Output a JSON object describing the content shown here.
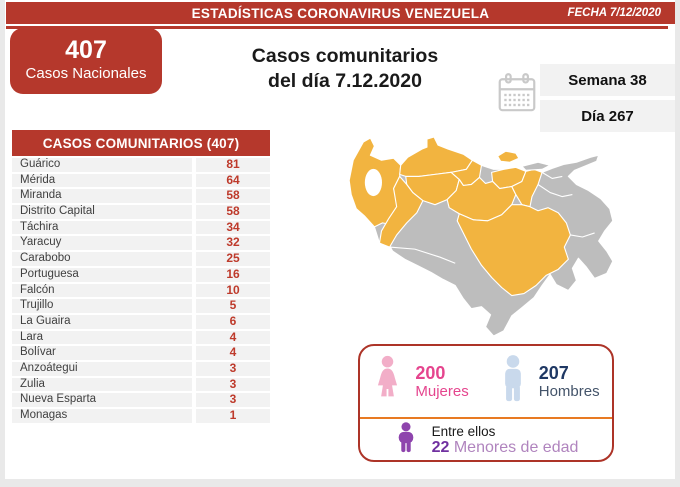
{
  "header": {
    "title": "ESTADÍSTICAS CORONAVIRUS VENEZUELA",
    "date_label": "FECHA 7/12/2020"
  },
  "national": {
    "value": "407",
    "label": "Casos Nacionales"
  },
  "main_title": {
    "line1": "Casos comunitarios",
    "line2": "del día 7.12.2020"
  },
  "period": {
    "week": "Semana 38",
    "day": "Día 267"
  },
  "table": {
    "header": "CASOS COMUNITARIOS (407)",
    "rows": [
      {
        "state": "Guárico",
        "value": "81"
      },
      {
        "state": "Mérida",
        "value": "64"
      },
      {
        "state": "Miranda",
        "value": "58"
      },
      {
        "state": "Distrito Capital",
        "value": "58"
      },
      {
        "state": "Táchira",
        "value": "34"
      },
      {
        "state": "Yaracuy",
        "value": "32"
      },
      {
        "state": "Carabobo",
        "value": "25"
      },
      {
        "state": "Portuguesa",
        "value": "16"
      },
      {
        "state": "Falcón",
        "value": "10"
      },
      {
        "state": "Trujillo",
        "value": "5"
      },
      {
        "state": "La Guaira",
        "value": "6"
      },
      {
        "state": "Lara",
        "value": "4"
      },
      {
        "state": "Bolívar",
        "value": "4"
      },
      {
        "state": "Anzoátegui",
        "value": "3"
      },
      {
        "state": "Zulia",
        "value": "3"
      },
      {
        "state": "Nueva Esparta",
        "value": "3"
      },
      {
        "state": "Monagas",
        "value": "1"
      }
    ]
  },
  "demographics": {
    "women": {
      "value": "200",
      "label": "Mujeres"
    },
    "men": {
      "value": "207",
      "label": "Hombres"
    },
    "minors": {
      "intro": "Entre ellos",
      "value": "22",
      "label": " Menores de edad"
    }
  },
  "chart_data": {
    "type": "table",
    "title": "CASOS COMUNITARIOS (407)",
    "categories": [
      "Guárico",
      "Mérida",
      "Miranda",
      "Distrito Capital",
      "Táchira",
      "Yaracuy",
      "Carabobo",
      "Portuguesa",
      "Falcón",
      "Trujillo",
      "La Guaira",
      "Lara",
      "Bolívar",
      "Anzoátegui",
      "Zulia",
      "Nueva Esparta",
      "Monagas"
    ],
    "values": [
      81,
      64,
      58,
      58,
      34,
      32,
      25,
      16,
      10,
      5,
      6,
      4,
      4,
      3,
      3,
      3,
      1
    ],
    "totals": {
      "national_cases": 407,
      "women": 200,
      "men": 207,
      "minors": 22
    },
    "date": "7.12.2020",
    "week": 38,
    "day": 267
  },
  "colors": {
    "brand-red": "#B5382C",
    "num-red": "#BE3A2B",
    "row-bg": "#F2F2F2",
    "row-text": "#3F3F3F",
    "panel-gray": "#F2F2F2",
    "edge-gray": "#E9E9E9",
    "map-on": "#F2B440",
    "map-off": "#BDBDBD",
    "box-border-red": "#AD3428",
    "divider-orange": "#E87A22",
    "women-pink": "#E5458E",
    "women-icon-pink": "#F2AEC8",
    "men-navy": "#1F3864",
    "men-label": "#44546A",
    "men-icon-blue": "#C9D9EC",
    "minors-purple": "#7030A0",
    "minors-label-purple": "#B084BE",
    "minors-icon-purple": "#8E44AD",
    "calendar-gray": "#C9C9C9"
  }
}
